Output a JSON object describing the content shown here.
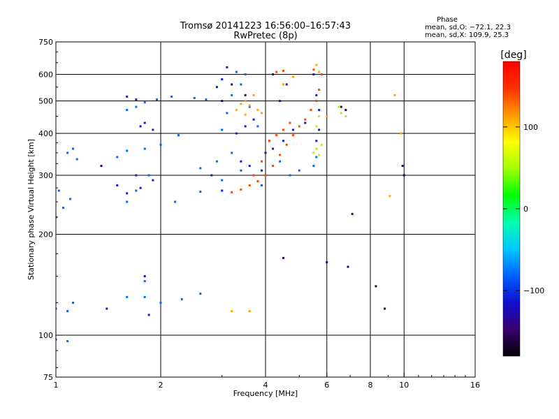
{
  "chart_data": {
    "type": "scatter",
    "title": "Tromsø 20141223 16:56:00–16:57:43",
    "subtitle": "RwPretec (8p)",
    "xlabel": "Frequency [MHz]",
    "ylabel": "Stationary phase Virtual Height [km]",
    "x_scale": "log2",
    "y_scale": "log",
    "xlim": [
      1,
      16
    ],
    "ylim": [
      75,
      750
    ],
    "x_ticks": [
      1,
      2,
      4,
      6,
      8,
      10,
      16
    ],
    "x_tick_labels": [
      "1",
      "2",
      "4",
      "6",
      "8",
      "10",
      "16"
    ],
    "y_ticks": [
      75,
      100,
      200,
      300,
      400,
      500,
      600,
      750
    ],
    "y_tick_labels": [
      "75",
      "100",
      "200",
      "300",
      "400",
      "500",
      "600",
      "750"
    ],
    "x_grid": [
      2,
      4,
      6,
      8,
      10
    ],
    "y_grid": [
      100,
      200,
      300,
      400,
      500,
      600
    ],
    "stats": {
      "heading": "Phase",
      "line_o": "mean, sd,O: −72.1, 22.3",
      "line_x": "mean, sd,X: 109.9, 25.3"
    },
    "colorbar": {
      "label": "[deg]",
      "range": [
        -180,
        180
      ],
      "ticks": [
        100,
        0,
        -100
      ],
      "tick_labels": [
        "100",
        "0",
        "−100"
      ],
      "colors": [
        "#000000",
        "#3a0070",
        "#1010d0",
        "#0060ff",
        "#00c8ff",
        "#00ffb0",
        "#00ff00",
        "#a0ff00",
        "#ffff00",
        "#ff9900",
        "#ff3000",
        "#ff0000"
      ]
    },
    "series": [
      {
        "phase": -80,
        "points": [
          [
            1.0,
            225
          ],
          [
            1.05,
            240
          ],
          [
            1.1,
            255
          ],
          [
            1.02,
            270
          ],
          [
            1.08,
            350
          ],
          [
            1.12,
            360
          ],
          [
            1.15,
            335
          ],
          [
            1.0,
            120
          ],
          [
            1.08,
            118
          ],
          [
            1.12,
            125
          ],
          [
            1.0,
            97
          ],
          [
            1.08,
            96
          ],
          [
            1.8,
            495
          ],
          [
            1.95,
            505
          ],
          [
            2.15,
            515
          ],
          [
            1.7,
            480
          ],
          [
            1.6,
            470
          ],
          [
            2.0,
            370
          ],
          [
            2.25,
            395
          ],
          [
            1.6,
            355
          ],
          [
            1.8,
            360
          ],
          [
            1.5,
            340
          ],
          [
            1.85,
            300
          ],
          [
            1.7,
            270
          ],
          [
            1.6,
            250
          ],
          [
            2.2,
            250
          ],
          [
            2.6,
            268
          ],
          [
            3.0,
            290
          ],
          [
            3.4,
            310
          ],
          [
            3.0,
            410
          ],
          [
            3.1,
            460
          ],
          [
            3.2,
            520
          ],
          [
            3.4,
            560
          ],
          [
            3.3,
            610
          ],
          [
            3.5,
            600
          ],
          [
            3.6,
            480
          ],
          [
            3.8,
            420
          ],
          [
            4.1,
            380
          ],
          [
            4.4,
            330
          ],
          [
            4.7,
            300
          ],
          [
            5.0,
            310
          ],
          [
            5.5,
            320
          ],
          [
            5.6,
            340
          ],
          [
            3.9,
            280
          ],
          [
            3.2,
            350
          ],
          [
            2.9,
            330
          ],
          [
            2.6,
            315
          ],
          [
            1.6,
            130
          ],
          [
            1.8,
            130
          ],
          [
            2.0,
            125
          ],
          [
            2.3,
            128
          ],
          [
            2.6,
            133
          ],
          [
            1.8,
            145
          ],
          [
            2.7,
            505
          ],
          [
            2.5,
            510
          ]
        ]
      },
      {
        "phase": -110,
        "points": [
          [
            1.5,
            280
          ],
          [
            1.6,
            265
          ],
          [
            1.75,
            275
          ],
          [
            1.9,
            290
          ],
          [
            1.7,
            300
          ],
          [
            1.8,
            430
          ],
          [
            1.9,
            410
          ],
          [
            1.75,
            420
          ],
          [
            1.6,
            515
          ],
          [
            1.7,
            505
          ],
          [
            2.9,
            550
          ],
          [
            3.0,
            580
          ],
          [
            3.1,
            630
          ],
          [
            3.3,
            400
          ],
          [
            3.5,
            420
          ],
          [
            3.7,
            440
          ],
          [
            4.0,
            350
          ],
          [
            4.2,
            360
          ],
          [
            4.5,
            380
          ],
          [
            4.8,
            410
          ],
          [
            5.2,
            430
          ],
          [
            5.6,
            380
          ],
          [
            5.7,
            410
          ],
          [
            3.4,
            330
          ],
          [
            3.6,
            320
          ],
          [
            3.9,
            310
          ],
          [
            3.0,
            270
          ],
          [
            2.8,
            300
          ],
          [
            1.8,
            150
          ],
          [
            1.85,
            115
          ],
          [
            1.4,
            120
          ],
          [
            5.7,
            470
          ],
          [
            5.6,
            520
          ],
          [
            5.5,
            600
          ],
          [
            4.6,
            560
          ],
          [
            4.4,
            500
          ]
        ]
      },
      {
        "phase": 140,
        "points": [
          [
            3.2,
            267
          ],
          [
            3.4,
            272
          ],
          [
            3.6,
            280
          ],
          [
            3.8,
            288
          ],
          [
            4.0,
            300
          ],
          [
            4.2,
            320
          ],
          [
            4.4,
            345
          ],
          [
            4.6,
            370
          ],
          [
            4.8,
            395
          ],
          [
            5.0,
            420
          ],
          [
            5.2,
            440
          ],
          [
            5.4,
            470
          ],
          [
            5.6,
            500
          ],
          [
            5.7,
            540
          ],
          [
            5.8,
            600
          ],
          [
            4.1,
            380
          ],
          [
            4.3,
            395
          ],
          [
            4.5,
            410
          ],
          [
            4.7,
            430
          ],
          [
            3.7,
            300
          ],
          [
            3.9,
            330
          ],
          [
            4.5,
            615
          ],
          [
            4.3,
            610
          ],
          [
            5.5,
            620
          ]
        ]
      },
      {
        "phase": 110,
        "points": [
          [
            3.3,
            470
          ],
          [
            3.4,
            490
          ],
          [
            3.5,
            500
          ],
          [
            3.6,
            485
          ],
          [
            3.7,
            520
          ],
          [
            3.5,
            455
          ],
          [
            3.8,
            470
          ],
          [
            3.9,
            460
          ],
          [
            3.2,
            118
          ],
          [
            3.6,
            118
          ],
          [
            4.5,
            560
          ],
          [
            4.8,
            590
          ],
          [
            5.6,
            640
          ],
          [
            5.7,
            610
          ],
          [
            9.4,
            520
          ],
          [
            9.8,
            400
          ],
          [
            9.1,
            260
          ],
          [
            6.0,
            450
          ]
        ]
      },
      {
        "phase": 50,
        "points": [
          [
            5.6,
            360
          ],
          [
            5.7,
            345
          ],
          [
            5.8,
            370
          ],
          [
            5.5,
            350
          ],
          [
            5.6,
            420
          ],
          [
            5.7,
            450
          ],
          [
            6.6,
            460
          ],
          [
            6.8,
            450
          ],
          [
            6.5,
            480
          ]
        ]
      },
      {
        "phase": -150,
        "points": [
          [
            3.5,
            520
          ],
          [
            3.2,
            560
          ],
          [
            3.0,
            500
          ],
          [
            4.2,
            600
          ],
          [
            6.6,
            480
          ],
          [
            6.8,
            470
          ],
          [
            7.1,
            230
          ],
          [
            8.3,
            140
          ],
          [
            8.8,
            120
          ],
          [
            9.9,
            320
          ],
          [
            10.0,
            300
          ],
          [
            1.35,
            320
          ],
          [
            4.5,
            170
          ],
          [
            6.0,
            165
          ],
          [
            6.9,
            160
          ]
        ]
      }
    ]
  }
}
